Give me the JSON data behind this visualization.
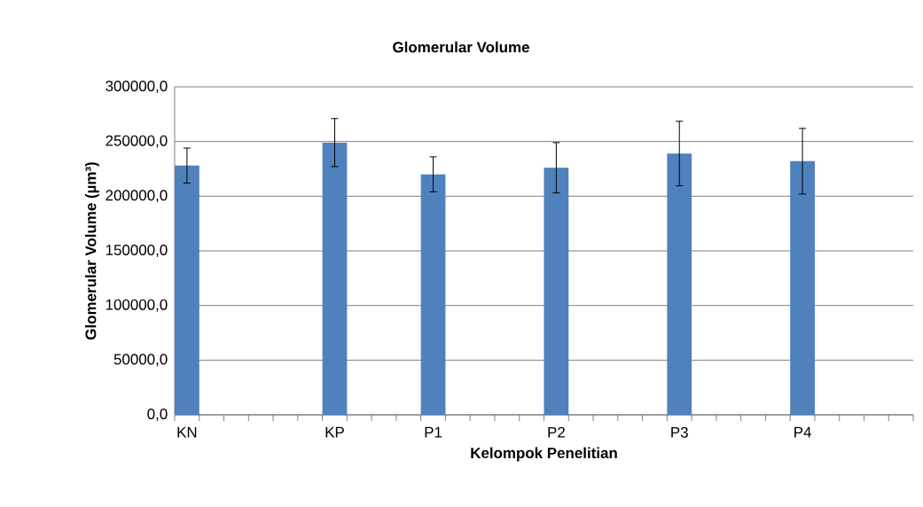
{
  "chart_data": {
    "type": "bar",
    "title": "Glomerular Volume",
    "xlabel": "Kelompok Penelitian",
    "ylabel": "Glomerular Volume (µm³)",
    "categories": [
      "KN",
      null,
      null,
      null,
      null,
      null,
      "KP",
      null,
      null,
      null,
      "P1",
      null,
      null,
      null,
      null,
      "P2",
      null,
      null,
      null,
      null,
      "P3",
      null,
      null,
      null,
      null,
      "P4",
      null,
      null,
      null,
      null
    ],
    "values": [
      228000,
      null,
      null,
      null,
      null,
      null,
      249000,
      null,
      null,
      null,
      220000,
      null,
      null,
      null,
      null,
      226000,
      null,
      null,
      null,
      null,
      239000,
      null,
      null,
      null,
      null,
      232000,
      null,
      null,
      null,
      null
    ],
    "errors": [
      16000,
      null,
      null,
      null,
      null,
      null,
      22000,
      null,
      null,
      null,
      16000,
      null,
      null,
      null,
      null,
      23000,
      null,
      null,
      null,
      null,
      29500,
      null,
      null,
      null,
      null,
      30000,
      null,
      null,
      null,
      null
    ],
    "color": "#4f81bd",
    "ylim": [
      0,
      300000
    ],
    "yticks": [
      {
        "value": 0,
        "label": "0,0"
      },
      {
        "value": 50000,
        "label": "50000,0"
      },
      {
        "value": 100000,
        "label": "100000,0"
      },
      {
        "value": 150000,
        "label": "150000,0"
      },
      {
        "value": 200000,
        "label": "200000,0"
      },
      {
        "value": 250000,
        "label": "250000,0"
      },
      {
        "value": 300000,
        "label": "300000,0"
      }
    ],
    "grid": "y"
  }
}
